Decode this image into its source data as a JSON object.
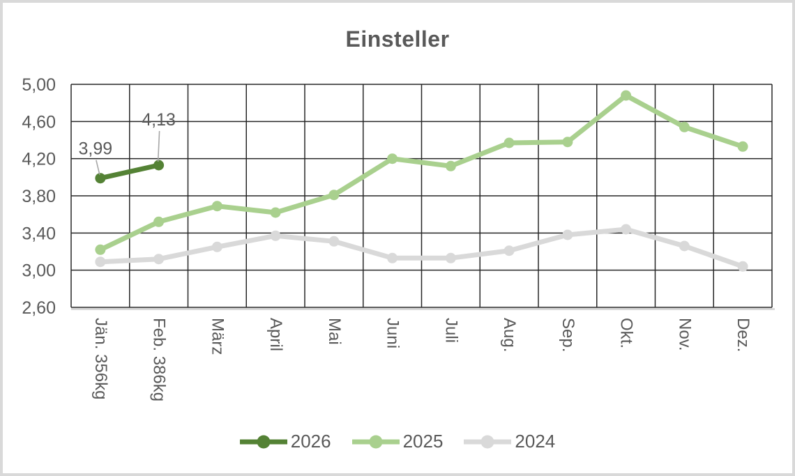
{
  "title": "Einsteller",
  "colors": {
    "text": "#595959",
    "grid": "#262626",
    "axis_shadow": "#d9d9d9",
    "leader_line": "#a6a6a6",
    "frame_border": "#d9d9d9",
    "series_2026": "#548235",
    "series_2025": "#a9d08e",
    "series_2024": "#d9d9d9"
  },
  "chart_data": {
    "type": "line",
    "title": "Einsteller",
    "categories": [
      "Jän.  356kg",
      "Feb.  386kg",
      "März",
      "April",
      "Mai",
      "Juni",
      "Juli",
      "Aug.",
      "Sep.",
      "Okt.",
      "Nov.",
      "Dez."
    ],
    "series": [
      {
        "name": "2026",
        "color": "#548235",
        "values": [
          3.99,
          4.13,
          null,
          null,
          null,
          null,
          null,
          null,
          null,
          null,
          null,
          null
        ]
      },
      {
        "name": "2025",
        "color": "#a9d08e",
        "values": [
          3.22,
          3.52,
          3.69,
          3.62,
          3.81,
          4.2,
          4.12,
          4.37,
          4.38,
          4.88,
          4.54,
          4.33
        ]
      },
      {
        "name": "2024",
        "color": "#d9d9d9",
        "values": [
          3.09,
          3.12,
          3.25,
          3.37,
          3.31,
          3.13,
          3.13,
          3.21,
          3.38,
          3.44,
          3.26,
          3.04
        ]
      }
    ],
    "y_axis": {
      "min": 2.6,
      "max": 5.0,
      "step": 0.4,
      "tick_labels": [
        "5,00",
        "4,60",
        "4,20",
        "3,80",
        "3,40",
        "3,00",
        "2,60"
      ]
    },
    "data_labels": [
      {
        "series": "2026",
        "point_index": 0,
        "text": "3,99"
      },
      {
        "series": "2026",
        "point_index": 1,
        "text": "4,13"
      }
    ],
    "legend": {
      "position": "bottom",
      "entries": [
        "2026",
        "2025",
        "2024"
      ]
    },
    "grid": true,
    "xlabel": "",
    "ylabel": ""
  }
}
